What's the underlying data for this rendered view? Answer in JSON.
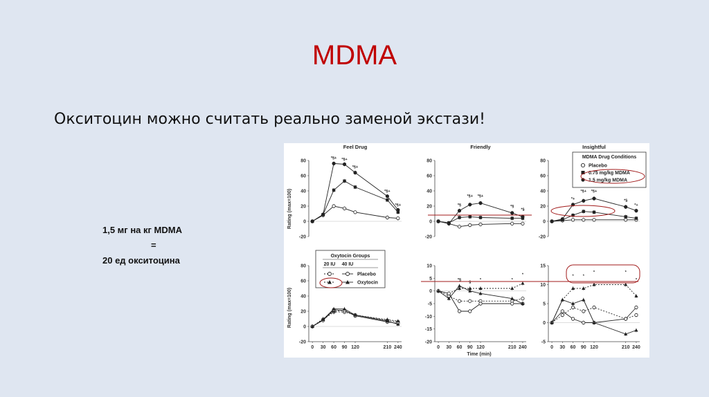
{
  "slide": {
    "title": "MDMA",
    "subtitle": "Окситоцин можно считать реально заменой экстази!",
    "note_line1": "1,5 мг на кг MDMA",
    "note_line2": "=",
    "note_line3": "20 ед окситоцина"
  },
  "colors": {
    "title": "#c00000",
    "background": "#dfe6f1",
    "annotation": "#a01818"
  },
  "figure": {
    "ylabel": "Rating (max=100)",
    "xlabel": "Time (min)",
    "legend_mdma": {
      "title": "MDMA Drug Conditions",
      "items": [
        "Placebo",
        "0.75 mg/kg MDMA",
        "1.5 mg/kg MDMA"
      ]
    },
    "legend_oxy": {
      "title": "Oxytocin Groups",
      "col1": "20 IU",
      "col2": "40 IU",
      "row1": "Placebo",
      "row2": "Oxytocin"
    }
  },
  "chart_data": [
    {
      "type": "line",
      "title": "Feel Drug",
      "x": [
        0,
        30,
        60,
        90,
        120,
        210,
        240
      ],
      "ylim": [
        -20,
        80
      ],
      "yticks": [
        -20,
        0,
        20,
        40,
        60,
        80
      ],
      "series": [
        {
          "name": "Placebo",
          "values": [
            0,
            8,
            20,
            17,
            12,
            5,
            4
          ]
        },
        {
          "name": "0.75 mg/kg MDMA",
          "values": [
            0,
            9,
            41,
            53,
            45,
            28,
            12
          ]
        },
        {
          "name": "1.5 mg/kg MDMA",
          "values": [
            0,
            9,
            76,
            75,
            64,
            33,
            15
          ]
        }
      ],
      "annotations": [
        {
          "x": 60,
          "y": 82,
          "text": "*§+"
        },
        {
          "x": 90,
          "y": 80,
          "text": "*§+"
        },
        {
          "x": 120,
          "y": 70,
          "text": "*§+"
        },
        {
          "x": 210,
          "y": 38,
          "text": "*§+"
        },
        {
          "x": 240,
          "y": 20,
          "text": "*§+"
        }
      ]
    },
    {
      "type": "line",
      "title": "Friendly",
      "x": [
        0,
        30,
        60,
        90,
        120,
        210,
        240
      ],
      "ylim": [
        -20,
        80
      ],
      "yticks": [
        -20,
        0,
        20,
        40,
        60,
        80
      ],
      "series": [
        {
          "name": "Placebo",
          "values": [
            0,
            -3,
            -7,
            -5,
            -4,
            -3,
            -3
          ]
        },
        {
          "name": "0.75 mg/kg MDMA",
          "values": [
            0,
            -2,
            5,
            6,
            5,
            4,
            4
          ]
        },
        {
          "name": "1.5 mg/kg MDMA",
          "values": [
            0,
            -3,
            14,
            22,
            24,
            11,
            6
          ]
        }
      ],
      "annotations": [
        {
          "x": 60,
          "y": 20,
          "text": "*§"
        },
        {
          "x": 90,
          "y": 32,
          "text": "*§+"
        },
        {
          "x": 120,
          "y": 32,
          "text": "*§+"
        },
        {
          "x": 210,
          "y": 18,
          "text": "*§"
        },
        {
          "x": 240,
          "y": 14,
          "text": "*§"
        }
      ]
    },
    {
      "type": "line",
      "title": "Insightful",
      "x": [
        0,
        30,
        60,
        90,
        120,
        210,
        240
      ],
      "ylim": [
        -20,
        80
      ],
      "yticks": [
        -20,
        0,
        20,
        40,
        60,
        80
      ],
      "series": [
        {
          "name": "Placebo",
          "values": [
            0,
            1,
            2,
            2,
            2,
            2,
            2
          ]
        },
        {
          "name": "0.75 mg/kg MDMA",
          "values": [
            0,
            2,
            8,
            13,
            12,
            6,
            4
          ]
        },
        {
          "name": "1.5 mg/kg MDMA",
          "values": [
            0,
            3,
            22,
            27,
            30,
            19,
            14
          ]
        }
      ],
      "annotations": [
        {
          "x": 60,
          "y": 28,
          "text": "*+"
        },
        {
          "x": 90,
          "y": 38,
          "text": "*§+"
        },
        {
          "x": 120,
          "y": 38,
          "text": "*§+"
        },
        {
          "x": 210,
          "y": 26,
          "text": "*§"
        },
        {
          "x": 240,
          "y": 20,
          "text": "*+"
        }
      ]
    },
    {
      "type": "line",
      "title": "",
      "x": [
        0,
        30,
        60,
        90,
        120,
        210,
        240
      ],
      "ylim": [
        -20,
        80
      ],
      "yticks": [
        -20,
        0,
        20,
        40,
        60,
        80
      ],
      "series": [
        {
          "name": "20 IU Placebo",
          "values": [
            0,
            9,
            19,
            19,
            15,
            8,
            6
          ]
        },
        {
          "name": "20 IU Oxytocin",
          "values": [
            0,
            10,
            20,
            21,
            15,
            9,
            7
          ]
        },
        {
          "name": "40 IU Placebo",
          "values": [
            0,
            8,
            22,
            21,
            14,
            6,
            4
          ]
        },
        {
          "name": "40 IU Oxytocin",
          "values": [
            0,
            9,
            23,
            23,
            15,
            7,
            3
          ]
        }
      ],
      "annotations": []
    },
    {
      "type": "line",
      "title": "",
      "x": [
        0,
        30,
        60,
        90,
        120,
        210,
        240
      ],
      "ylim": [
        -20,
        10
      ],
      "yticks": [
        -20,
        -15,
        -10,
        -5,
        0,
        5,
        10
      ],
      "series": [
        {
          "name": "20 IU Placebo",
          "values": [
            0,
            -2,
            -4,
            -4,
            -4,
            -4,
            -3
          ]
        },
        {
          "name": "20 IU Oxytocin",
          "values": [
            0,
            -1,
            1,
            1,
            1,
            1,
            3
          ]
        },
        {
          "name": "40 IU Placebo",
          "values": [
            0,
            -1,
            -8,
            -8,
            -5,
            -5,
            -5
          ]
        },
        {
          "name": "40 IU Oxytocin",
          "values": [
            0,
            -3,
            2,
            0,
            -1,
            -3,
            -5
          ]
        }
      ],
      "annotations": [
        {
          "x": 60,
          "y": 4,
          "text": "*§"
        },
        {
          "x": 90,
          "y": 3,
          "text": "§"
        },
        {
          "x": 120,
          "y": 4,
          "text": "*"
        },
        {
          "x": 210,
          "y": 4,
          "text": "*"
        },
        {
          "x": 240,
          "y": 6,
          "text": "*"
        }
      ]
    },
    {
      "type": "line",
      "title": "",
      "x": [
        0,
        30,
        60,
        90,
        120,
        210,
        240
      ],
      "ylim": [
        -5,
        15
      ],
      "yticks": [
        -5,
        0,
        5,
        10,
        15
      ],
      "series": [
        {
          "name": "20 IU Placebo",
          "values": [
            0,
            2,
            4,
            3,
            4,
            1,
            2
          ]
        },
        {
          "name": "20 IU Oxytocin",
          "values": [
            0,
            6,
            9,
            9,
            10,
            10,
            7
          ]
        },
        {
          "name": "40 IU Placebo",
          "values": [
            0,
            3,
            1,
            0,
            0,
            1,
            4
          ]
        },
        {
          "name": "40 IU Oxytocin",
          "values": [
            0,
            6,
            5,
            6,
            0,
            -3,
            -2
          ]
        }
      ],
      "annotations": [
        {
          "x": 60,
          "y": 12,
          "text": "*"
        },
        {
          "x": 90,
          "y": 12,
          "text": "*"
        },
        {
          "x": 120,
          "y": 13,
          "text": "*"
        },
        {
          "x": 210,
          "y": 13,
          "text": "*"
        },
        {
          "x": 240,
          "y": 11,
          "text": "*"
        }
      ]
    }
  ]
}
